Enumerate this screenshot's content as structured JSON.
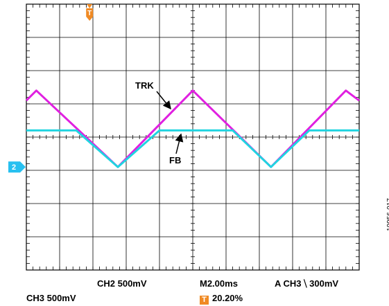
{
  "chart_data": {
    "type": "line",
    "title": "",
    "xlabel": "",
    "ylabel": "",
    "grid": true,
    "divisions": {
      "x": 10,
      "y": 8
    },
    "xlim": [
      0,
      10
    ],
    "ylim": [
      -4,
      4
    ],
    "x_unit": "div",
    "y_unit": "div",
    "series": [
      {
        "name": "TRK",
        "color": "#e020e0",
        "x": [
          0,
          0.3,
          2.75,
          5.0,
          7.35,
          9.6,
          10.0
        ],
        "y": [
          1.1,
          1.4,
          -0.9,
          1.4,
          -0.9,
          1.4,
          1.1
        ]
      },
      {
        "name": "FB",
        "color": "#20d4e0",
        "x": [
          0,
          1.5,
          2.75,
          4.0,
          6.2,
          7.35,
          8.5,
          10.0
        ],
        "y": [
          0.2,
          0.2,
          -0.9,
          0.2,
          0.2,
          -0.9,
          0.2,
          0.2
        ]
      }
    ],
    "annotations": [
      {
        "text": "TRK",
        "target": "TRK"
      },
      {
        "text": "FB",
        "target": "FB"
      }
    ],
    "markers": {
      "trigger": {
        "label": "T",
        "x": 1.9,
        "color": "#f08a24"
      },
      "channel": {
        "label": "2",
        "y": -0.9,
        "color": "#27c0f0"
      }
    }
  },
  "readout": {
    "ch2": "CH2  500mV",
    "timebase": "M2.00ms",
    "trigger": "A  CH3 ⧹  300mV",
    "ch3": "CH3  500mV",
    "trigger_pos_badge": "T",
    "trigger_pos": "20.20%"
  },
  "figure_id": "10956-017"
}
